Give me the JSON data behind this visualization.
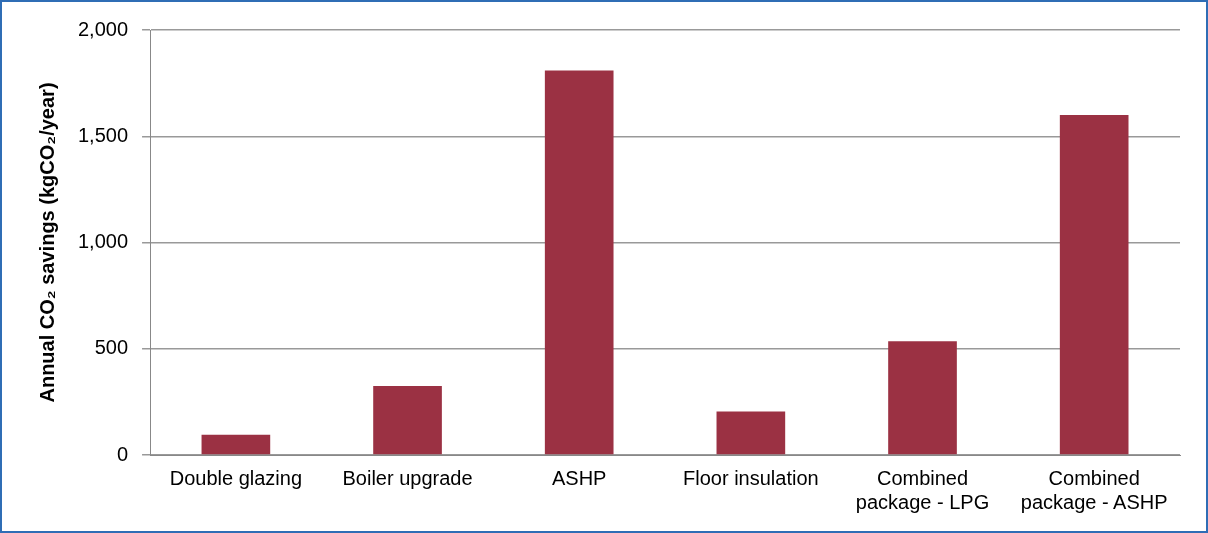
{
  "chart_data": {
    "type": "bar",
    "ylabel": "Annual CO₂ savings (kgCO₂/year)",
    "categories": [
      "Double glazing",
      "Boiler upgrade",
      "ASHP",
      "Floor insulation",
      "Combined package - LPG",
      "Combined package - ASHP"
    ],
    "values": [
      95,
      325,
      1810,
      205,
      535,
      1600
    ],
    "color": "#9b3143",
    "ylim": [
      0,
      2000
    ],
    "yticks": [
      0,
      500,
      {
        "value": 1000,
        "label": "1,000"
      },
      {
        "value": 1500,
        "label": "1,500"
      },
      {
        "value": 2000,
        "label": "2,000"
      }
    ],
    "grid": "y"
  }
}
